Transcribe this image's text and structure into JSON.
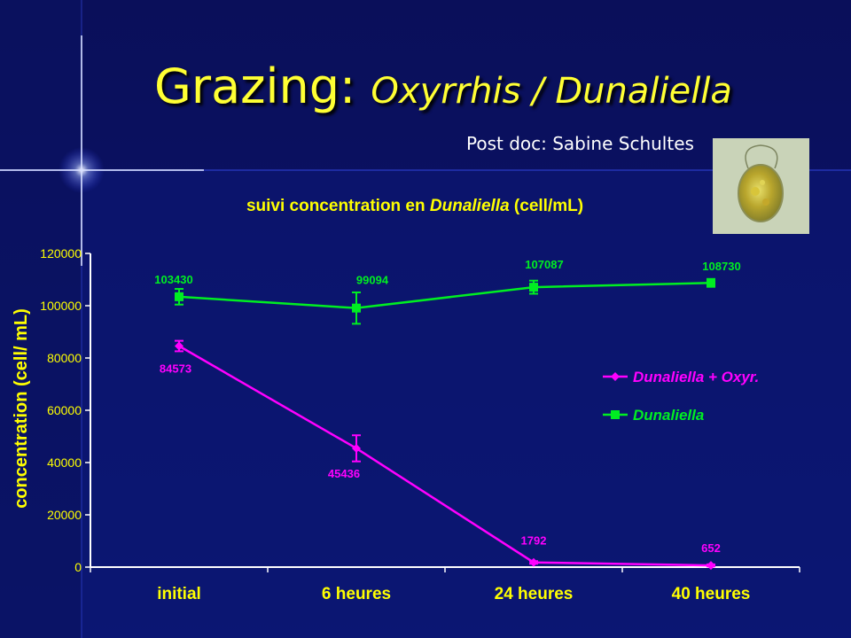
{
  "slide": {
    "title_prefix": "Grazing: ",
    "title_italic": "Oxyrrhis / Dunaliella",
    "credit": "Post doc: Sabine Schultes"
  },
  "colors": {
    "background_top": "#0a0f5c",
    "background_bottom": "#0b1470",
    "title": "#ffff33",
    "axis_text": "#ffff00",
    "series_oxyr": "#ff00ff",
    "series_dun": "#00ee22"
  },
  "chart_data": {
    "type": "line",
    "title_parts": [
      "suivi concentration en ",
      "Dunaliella",
      " (cell/mL)"
    ],
    "xlabel": "",
    "ylabel": "concentration (cell/ mL)",
    "categories": [
      "initial",
      "6 heures",
      "24 heures",
      "40 heures"
    ],
    "ylim": [
      0,
      120000
    ],
    "yticks": [
      0,
      20000,
      40000,
      60000,
      80000,
      100000,
      120000
    ],
    "grid": false,
    "legend_position": "right",
    "series": [
      {
        "name": "Dunaliella + Oxyr.",
        "values": [
          84573,
          45436,
          1792,
          652
        ],
        "errors": [
          2000,
          5000,
          500,
          400
        ],
        "labels": [
          "84573",
          "45436",
          "1792",
          "652"
        ],
        "color": "#ff00ff",
        "marker": "diamond"
      },
      {
        "name": "Dunaliella",
        "values": [
          103430,
          99094,
          107087,
          108730
        ],
        "errors": [
          3000,
          6000,
          2500,
          1500
        ],
        "labels": [
          "103430",
          "99094",
          "107087",
          "108730"
        ],
        "color": "#00ee22",
        "marker": "square"
      }
    ]
  }
}
